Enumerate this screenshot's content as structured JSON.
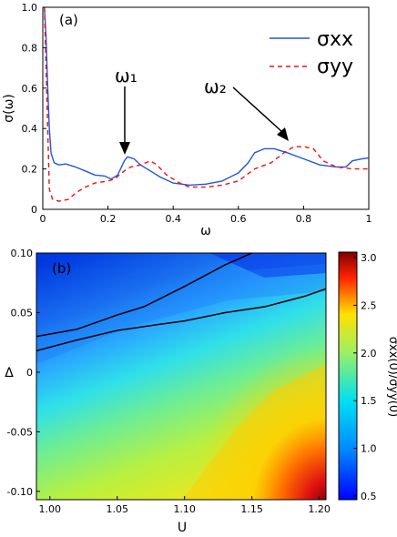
{
  "chart_data": [
    {
      "type": "line",
      "panel_label": "(a)",
      "xlabel": "ω",
      "ylabel": "σ(ω)",
      "xlim": [
        0,
        1
      ],
      "ylim": [
        0,
        1
      ],
      "xticks": [
        "0",
        "0.2",
        "0.4",
        "0.6",
        "0.8",
        "1"
      ],
      "yticks": [
        "0",
        "0.2",
        "0.4",
        "0.6",
        "0.8",
        "1.0"
      ],
      "legend_position": "top-right",
      "series": [
        {
          "name": "σxx",
          "color": "#2255dd",
          "style": "solid",
          "points": [
            [
              0.005,
              1.0
            ],
            [
              0.01,
              0.85
            ],
            [
              0.015,
              0.6
            ],
            [
              0.02,
              0.4
            ],
            [
              0.025,
              0.28
            ],
            [
              0.035,
              0.23
            ],
            [
              0.05,
              0.22
            ],
            [
              0.07,
              0.225
            ],
            [
              0.1,
              0.21
            ],
            [
              0.13,
              0.19
            ],
            [
              0.16,
              0.17
            ],
            [
              0.19,
              0.165
            ],
            [
              0.21,
              0.15
            ],
            [
              0.23,
              0.17
            ],
            [
              0.25,
              0.24
            ],
            [
              0.26,
              0.26
            ],
            [
              0.28,
              0.25
            ],
            [
              0.3,
              0.22
            ],
            [
              0.33,
              0.19
            ],
            [
              0.36,
              0.16
            ],
            [
              0.4,
              0.13
            ],
            [
              0.45,
              0.12
            ],
            [
              0.5,
              0.125
            ],
            [
              0.55,
              0.14
            ],
            [
              0.6,
              0.18
            ],
            [
              0.63,
              0.23
            ],
            [
              0.65,
              0.28
            ],
            [
              0.68,
              0.3
            ],
            [
              0.71,
              0.3
            ],
            [
              0.75,
              0.28
            ],
            [
              0.8,
              0.25
            ],
            [
              0.85,
              0.22
            ],
            [
              0.9,
              0.21
            ],
            [
              0.93,
              0.21
            ],
            [
              0.95,
              0.24
            ],
            [
              0.98,
              0.25
            ],
            [
              1.0,
              0.255
            ]
          ]
        },
        {
          "name": "σyy",
          "color": "#ee1111",
          "style": "dashed",
          "points": [
            [
              0.005,
              1.0
            ],
            [
              0.01,
              0.7
            ],
            [
              0.015,
              0.4
            ],
            [
              0.02,
              0.1
            ],
            [
              0.03,
              0.05
            ],
            [
              0.05,
              0.04
            ],
            [
              0.08,
              0.05
            ],
            [
              0.1,
              0.08
            ],
            [
              0.13,
              0.11
            ],
            [
              0.16,
              0.13
            ],
            [
              0.2,
              0.14
            ],
            [
              0.22,
              0.15
            ],
            [
              0.25,
              0.19
            ],
            [
              0.27,
              0.21
            ],
            [
              0.3,
              0.22
            ],
            [
              0.33,
              0.24
            ],
            [
              0.35,
              0.22
            ],
            [
              0.38,
              0.17
            ],
            [
              0.42,
              0.13
            ],
            [
              0.45,
              0.11
            ],
            [
              0.5,
              0.11
            ],
            [
              0.55,
              0.12
            ],
            [
              0.6,
              0.14
            ],
            [
              0.65,
              0.2
            ],
            [
              0.7,
              0.23
            ],
            [
              0.74,
              0.28
            ],
            [
              0.77,
              0.31
            ],
            [
              0.8,
              0.31
            ],
            [
              0.83,
              0.3
            ],
            [
              0.86,
              0.24
            ],
            [
              0.9,
              0.21
            ],
            [
              0.95,
              0.2
            ],
            [
              1.0,
              0.2
            ]
          ]
        }
      ],
      "annotations": [
        {
          "text": "ω₁",
          "x": 0.26,
          "y": 0.26
        },
        {
          "text": "ω₂",
          "x": 0.77,
          "y": 0.31
        }
      ]
    },
    {
      "type": "heatmap",
      "panel_label": "(b)",
      "xlabel": "U",
      "ylabel": "Δ",
      "xlim": [
        0.99,
        1.205
      ],
      "ylim": [
        -0.107,
        0.1
      ],
      "xticks": [
        "1.00",
        "1.05",
        "1.10",
        "1.15",
        "1.20"
      ],
      "yticks": [
        "0.10",
        "0.05",
        "0",
        "-0.05",
        "-0.10"
      ],
      "colorbar": {
        "label": "σxx(0)/σyy(0)",
        "min": 0.5,
        "max": 3.0,
        "ticks": [
          "3.0",
          "2.5",
          "2.0",
          "1.5",
          "1.0",
          "0.5"
        ]
      },
      "contours": [
        {
          "name": "upper",
          "points": [
            [
              0.99,
              0.03
            ],
            [
              1.02,
              0.036
            ],
            [
              1.05,
              0.048
            ],
            [
              1.07,
              0.055
            ],
            [
              1.1,
              0.072
            ],
            [
              1.13,
              0.09
            ],
            [
              1.15,
              0.1
            ]
          ]
        },
        {
          "name": "lower",
          "points": [
            [
              0.99,
              0.018
            ],
            [
              1.02,
              0.027
            ],
            [
              1.05,
              0.035
            ],
            [
              1.08,
              0.04
            ],
            [
              1.1,
              0.043
            ],
            [
              1.13,
              0.05
            ],
            [
              1.16,
              0.055
            ],
            [
              1.19,
              0.064
            ],
            [
              1.205,
              0.07
            ]
          ]
        }
      ]
    }
  ]
}
